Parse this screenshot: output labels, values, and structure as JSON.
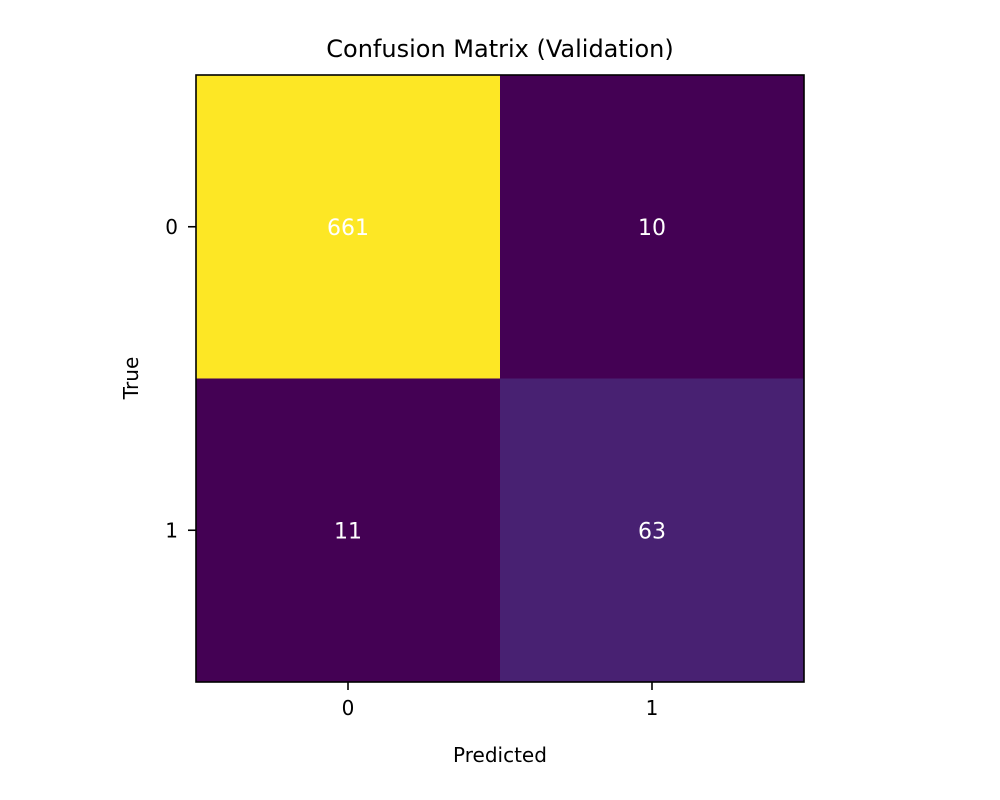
{
  "chart_data": {
    "type": "heatmap",
    "title": "Confusion Matrix (Validation)",
    "xlabel": "Predicted",
    "ylabel": "True",
    "x_categories": [
      "0",
      "1"
    ],
    "y_categories": [
      "0",
      "1"
    ],
    "matrix": [
      [
        661,
        10
      ],
      [
        11,
        63
      ]
    ],
    "colormap": "viridis",
    "cell_colors": [
      [
        "#fde725",
        "#440154"
      ],
      [
        "#440154",
        "#482172"
      ]
    ],
    "annotation_color": "#ffffff",
    "grid": false,
    "legend": "none"
  }
}
